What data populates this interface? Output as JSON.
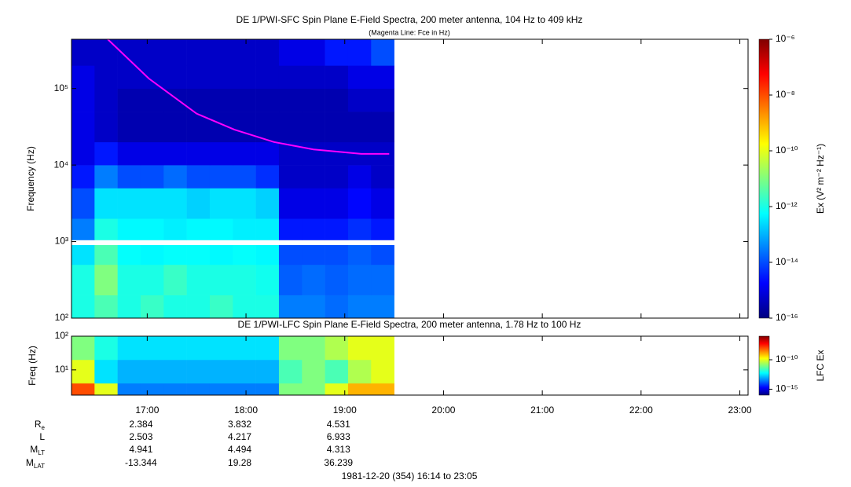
{
  "chart_data": [
    {
      "type": "heatmap",
      "title": "DE 1/PWI-SFC  Spin Plane E-Field Spectra, 200 meter antenna, 104 Hz to 409 kHz",
      "subtitle": "(Magenta Line: Fce in Hz)",
      "ylabel": "Frequency (Hz)",
      "log_y": true,
      "xlim": [
        974,
        1385
      ],
      "ylim": [
        100,
        440000
      ],
      "yticks": [
        {
          "value": 100,
          "label": "10²"
        },
        {
          "value": 1000,
          "label": "10³"
        },
        {
          "value": 10000,
          "label": "10⁴"
        },
        {
          "value": 100000,
          "label": "10⁵"
        }
      ],
      "x_edges": [
        974,
        988,
        1002,
        1016,
        1030,
        1044,
        1058,
        1072,
        1086,
        1100,
        1114,
        1128,
        1142,
        1156,
        1170
      ],
      "y_edges": [
        100,
        200,
        500,
        900,
        1050,
        2000,
        5000,
        10000,
        20000,
        50000,
        100000,
        200000,
        440000
      ],
      "values": [
        [
          1e-12,
          3e-12,
          1e-12,
          2e-12,
          1e-12,
          1e-12,
          2e-12,
          1e-12,
          1e-12,
          3e-14,
          3e-14,
          2e-14,
          3e-14,
          3e-14
        ],
        [
          1e-12,
          1e-11,
          1e-12,
          1e-12,
          2e-12,
          1e-12,
          1e-12,
          1e-12,
          8e-13,
          1.5e-14,
          2e-14,
          1.5e-14,
          2e-14,
          2e-14
        ],
        [
          3e-13,
          3e-12,
          6e-13,
          5e-13,
          6e-13,
          6e-13,
          5e-13,
          6e-13,
          5e-13,
          1e-14,
          1e-14,
          1e-14,
          1.5e-14,
          1e-14
        ],
        [
          null,
          null,
          null,
          null,
          null,
          null,
          null,
          null,
          null,
          null,
          null,
          null,
          null,
          null
        ],
        [
          3e-14,
          1e-12,
          5e-13,
          5e-13,
          4e-13,
          5e-13,
          5e-13,
          4e-13,
          4e-13,
          3e-15,
          3e-15,
          3e-15,
          5e-15,
          3e-15
        ],
        [
          1e-14,
          3e-13,
          3e-13,
          3e-13,
          3e-13,
          2e-13,
          3e-13,
          3e-13,
          2e-13,
          1e-15,
          1e-15,
          1e-15,
          2e-15,
          1e-15
        ],
        [
          3e-15,
          3e-14,
          1e-14,
          1e-14,
          2e-14,
          1e-14,
          1e-14,
          1e-14,
          5e-15,
          5e-16,
          5e-16,
          5e-16,
          1e-15,
          5e-16
        ],
        [
          1e-15,
          3e-15,
          1e-15,
          1e-15,
          1e-15,
          1e-15,
          1e-15,
          1e-15,
          1e-15,
          5e-16,
          5e-16,
          5e-16,
          5e-16,
          5e-16
        ],
        [
          1e-15,
          5e-16,
          3e-16,
          3e-16,
          3e-16,
          3e-16,
          3e-16,
          3e-16,
          3e-16,
          3e-16,
          3e-16,
          3e-16,
          3e-16,
          3e-16
        ],
        [
          1e-15,
          5e-16,
          3e-16,
          3e-16,
          3e-16,
          3e-16,
          3e-16,
          3e-16,
          3e-16,
          3e-16,
          3e-16,
          3e-16,
          5e-16,
          5e-16
        ],
        [
          1e-15,
          5e-16,
          5e-16,
          5e-16,
          5e-16,
          5e-16,
          5e-16,
          5e-16,
          5e-16,
          5e-16,
          5e-16,
          5e-16,
          1e-15,
          1e-15
        ],
        [
          5e-16,
          5e-16,
          5e-16,
          5e-16,
          5e-16,
          5e-16,
          5e-16,
          5e-16,
          5e-16,
          1e-15,
          1e-15,
          3e-15,
          3e-15,
          1e-14
        ]
      ],
      "line": {
        "color": "#ff00ff",
        "x": [
          996,
          1021,
          1050,
          1073,
          1097,
          1121,
          1150,
          1167
        ],
        "y": [
          440000,
          135000,
          47000,
          29000,
          20000,
          16000,
          14000,
          14000
        ]
      },
      "colorbar": {
        "label": "Ex (V² m⁻² Hz⁻¹)",
        "log": true,
        "lim": [
          1e-16,
          1e-06
        ],
        "ticks": [
          {
            "value": 1e-16,
            "label": "10⁻¹⁶"
          },
          {
            "value": 1e-14,
            "label": "10⁻¹⁴"
          },
          {
            "value": 1e-12,
            "label": "10⁻¹²"
          },
          {
            "value": 1e-10,
            "label": "10⁻¹⁰"
          },
          {
            "value": 1e-08,
            "label": "10⁻⁸"
          },
          {
            "value": 1e-06,
            "label": "10⁻⁶"
          }
        ]
      }
    },
    {
      "type": "heatmap",
      "title": "DE 1/PWI-LFC  Spin Plane E-Field Spectra, 200 meter antenna, 1.78 Hz to 100 Hz",
      "ylabel": "Freq (Hz)",
      "log_y": true,
      "xlim": [
        974,
        1385
      ],
      "ylim": [
        1.78,
        100
      ],
      "yticks": [
        {
          "value": 10,
          "label": "10¹"
        },
        {
          "value": 100,
          "label": "10²"
        }
      ],
      "xticks": [
        {
          "value": 1020,
          "label": "17:00"
        },
        {
          "value": 1080,
          "label": "18:00"
        },
        {
          "value": 1140,
          "label": "19:00"
        },
        {
          "value": 1200,
          "label": "20:00"
        },
        {
          "value": 1260,
          "label": "21:00"
        },
        {
          "value": 1320,
          "label": "22:00"
        },
        {
          "value": 1380,
          "label": "23:00"
        }
      ],
      "x_edges": [
        974,
        988,
        1002,
        1016,
        1030,
        1044,
        1058,
        1072,
        1086,
        1100,
        1114,
        1128,
        1142,
        1156,
        1170
      ],
      "y_edges": [
        1.78,
        4,
        20,
        100
      ],
      "values": [
        [
          1e-08,
          1e-10,
          3e-14,
          3e-14,
          3e-14,
          3e-14,
          3e-14,
          3e-14,
          3e-14,
          1e-11,
          1e-11,
          1e-10,
          1e-09,
          1e-09
        ],
        [
          1e-10,
          3e-13,
          1e-13,
          1e-13,
          1e-13,
          1e-13,
          1e-13,
          1e-13,
          1e-13,
          3e-12,
          1e-11,
          3e-12,
          3e-11,
          1e-10
        ],
        [
          1e-11,
          1e-12,
          3e-13,
          3e-13,
          3e-13,
          3e-13,
          3e-13,
          3e-13,
          3e-13,
          1e-11,
          1e-11,
          3e-11,
          1e-10,
          1e-10
        ]
      ],
      "colorbar": {
        "label": "LFC Ex",
        "log": true,
        "lim": [
          1e-16,
          1e-06
        ],
        "ticks": [
          {
            "value": 1e-15,
            "label": "10⁻¹⁵"
          },
          {
            "value": 1e-10,
            "label": "10⁻¹⁰"
          }
        ]
      }
    }
  ],
  "ephemeris": [
    {
      "label": "R",
      "sub": "e",
      "values": [
        2.384,
        3.832,
        4.531
      ]
    },
    {
      "label": "L",
      "values": [
        2.503,
        4.217,
        6.933
      ]
    },
    {
      "label": "M",
      "sub": "LT",
      "values": [
        4.941,
        4.494,
        4.313
      ]
    },
    {
      "label": "M",
      "sub": "LAT",
      "values": [
        -13.344,
        19.28,
        36.239
      ]
    }
  ],
  "footer": "1981-12-20 (354) 16:14 to 23:05"
}
